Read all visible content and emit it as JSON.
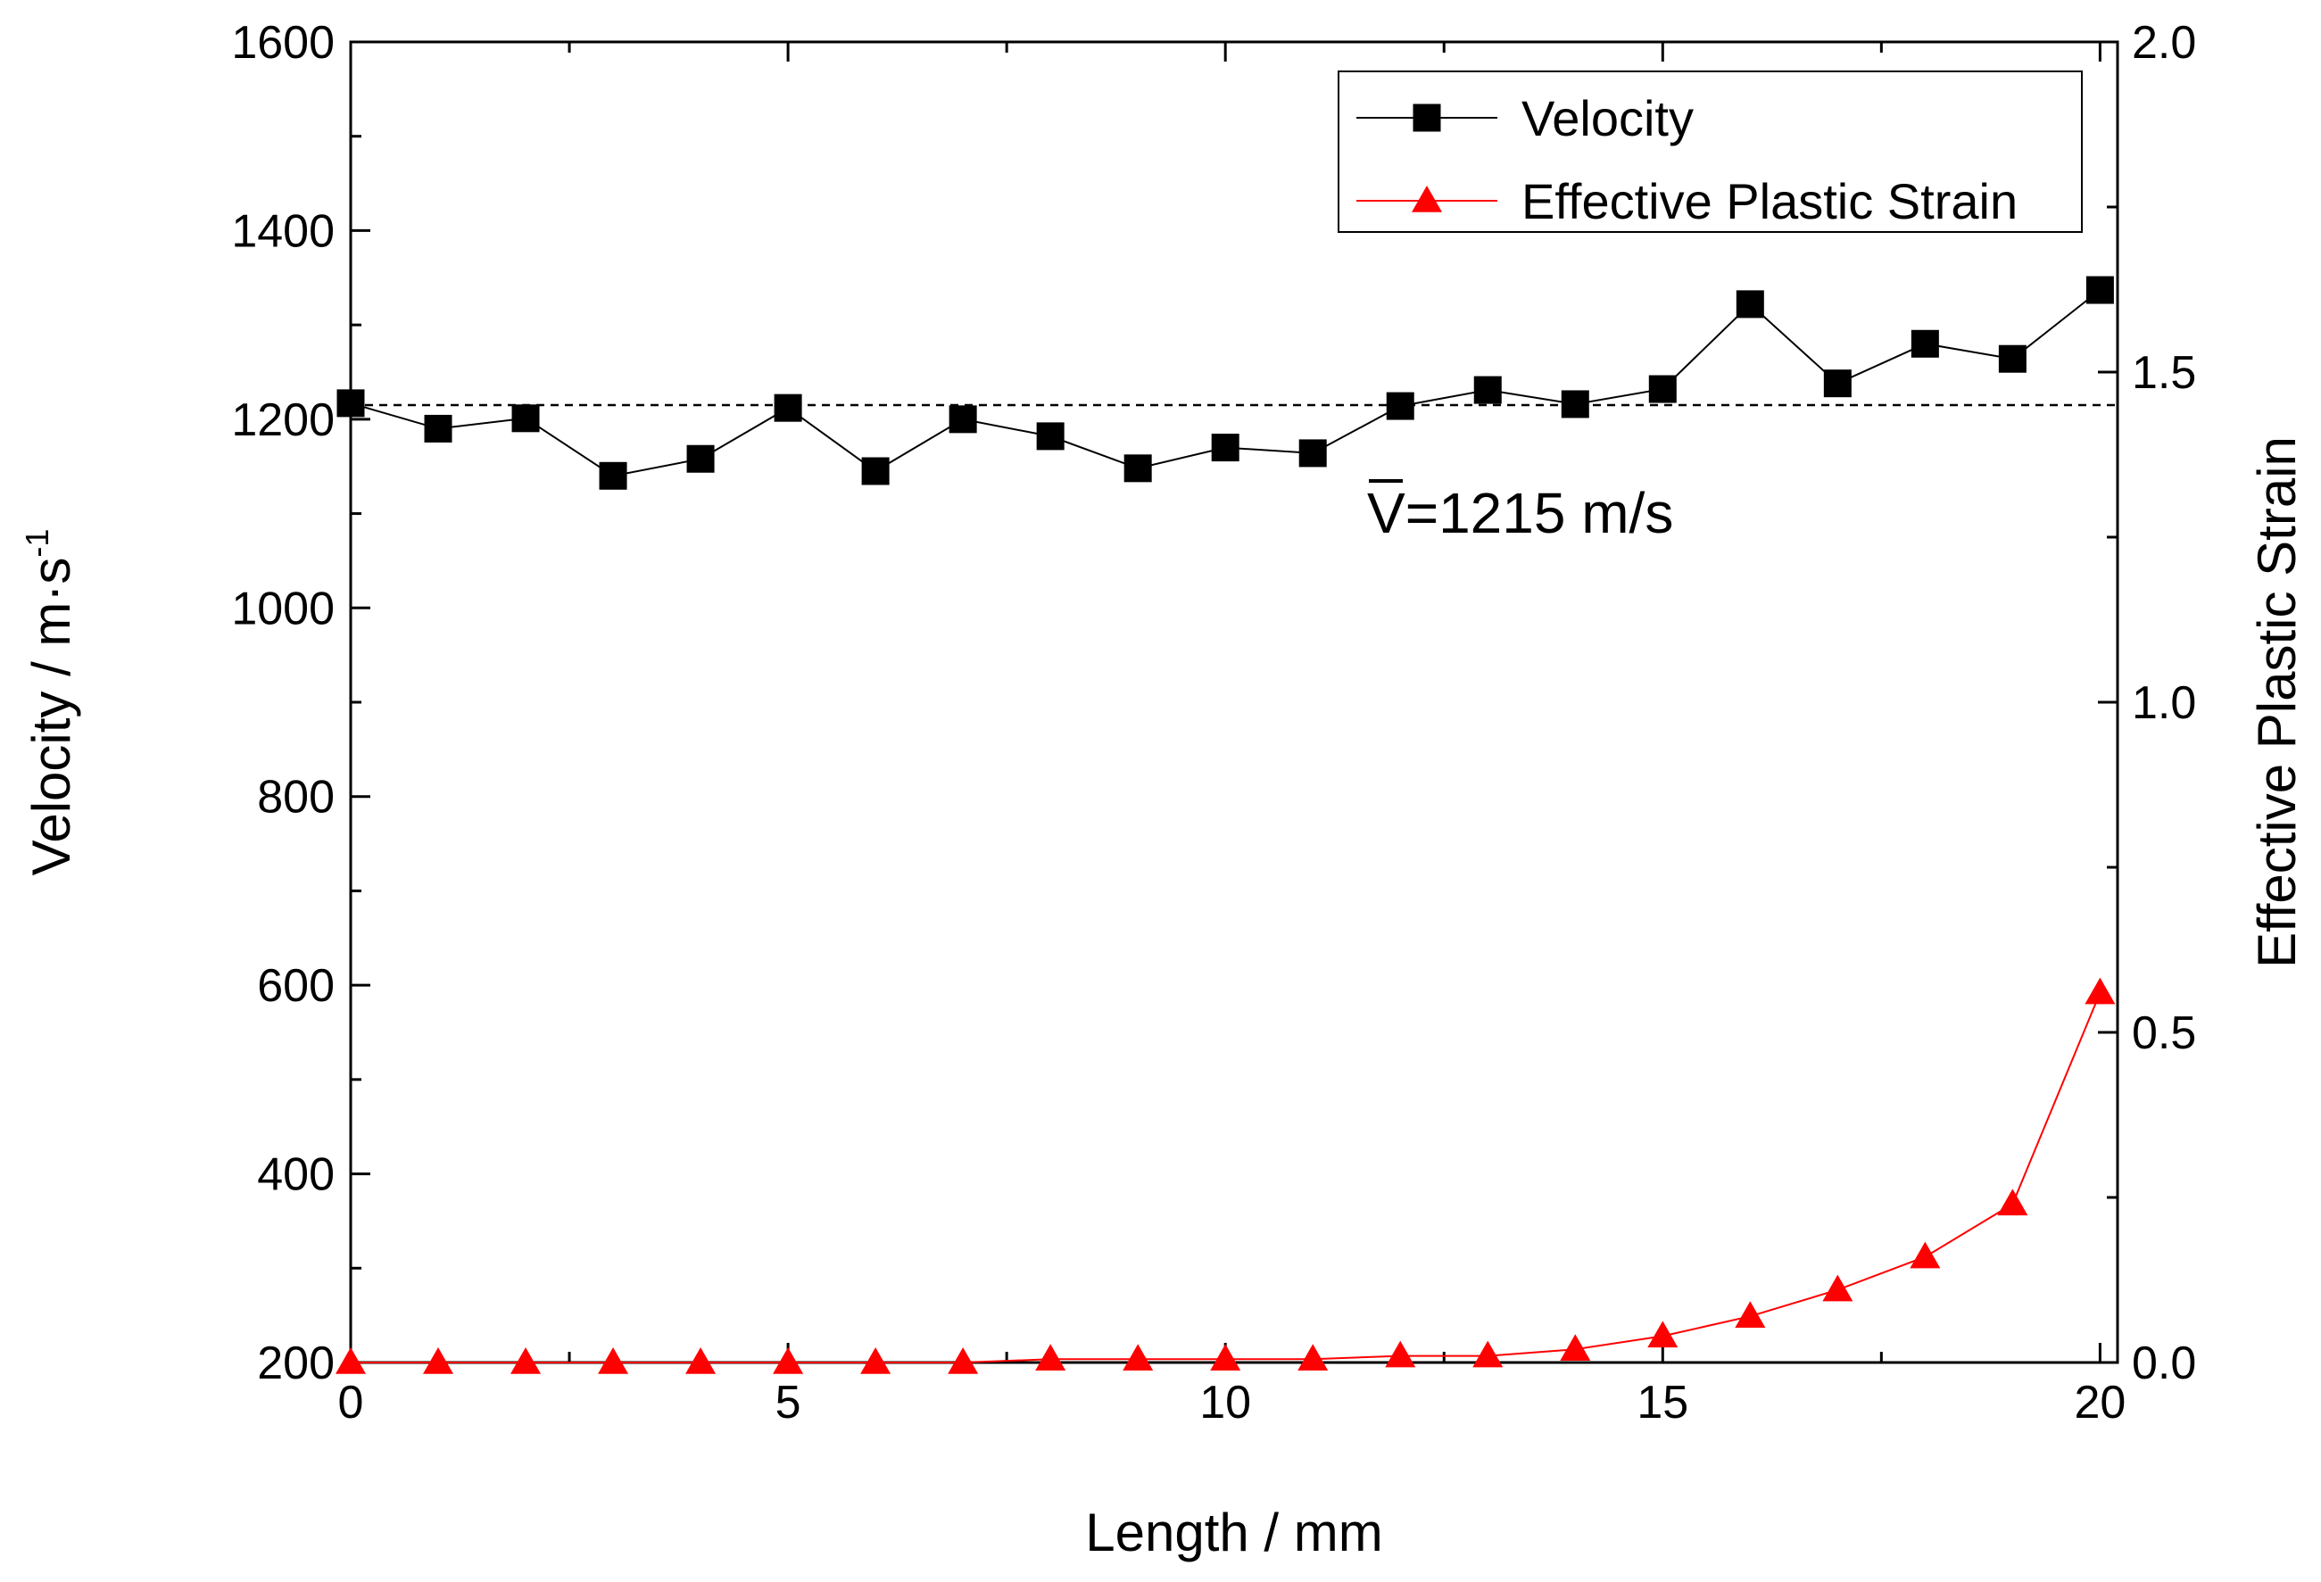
{
  "chart_data": {
    "type": "line",
    "xlabel": "Length / mm",
    "ylabel_left": "Velocity / m·s",
    "ylabel_left_exponent": "-1",
    "ylabel_right": "Effective Plastic Strain",
    "xlim": [
      0,
      20.2
    ],
    "ylim_left": [
      200,
      1600
    ],
    "ylim_right": [
      0.0,
      2.0
    ],
    "x_ticks": [
      "0",
      "5",
      "10",
      "15",
      "20"
    ],
    "y_left_ticks": [
      "200",
      "400",
      "600",
      "800",
      "1000",
      "1200",
      "1400",
      "1600"
    ],
    "y_right_ticks": [
      "0.0",
      "0.5",
      "1.0",
      "1.5",
      "2.0"
    ],
    "grid": false,
    "legend_position": "top-right",
    "series": [
      {
        "name": "Velocity",
        "axis": "left",
        "color": "#000000",
        "marker": "square",
        "x": [
          0,
          1,
          2,
          3,
          4,
          5,
          6,
          7,
          8,
          9,
          10,
          11,
          12,
          13,
          14,
          15,
          16,
          17,
          18,
          19,
          20
        ],
        "values": [
          1217,
          1190,
          1201,
          1140,
          1158,
          1212,
          1145,
          1200,
          1182,
          1148,
          1170,
          1164,
          1214,
          1231,
          1216,
          1232,
          1322,
          1238,
          1280,
          1264,
          1337
        ]
      },
      {
        "name": "Effective Plastic Strain",
        "axis": "right",
        "color": "#ff0000",
        "marker": "triangle",
        "x": [
          0,
          1,
          2,
          3,
          4,
          5,
          6,
          7,
          8,
          9,
          10,
          11,
          12,
          13,
          14,
          15,
          16,
          17,
          18,
          19,
          20
        ],
        "values": [
          0.0,
          0.0,
          0.0,
          0.0,
          0.0,
          0.0,
          0.0,
          0.0,
          0.005,
          0.005,
          0.005,
          0.005,
          0.01,
          0.01,
          0.02,
          0.04,
          0.07,
          0.11,
          0.16,
          0.24,
          0.56
        ]
      }
    ],
    "reference_line": {
      "axis": "left",
      "value": 1215,
      "style": "dashed",
      "annotation": "V=1215 m/s",
      "annotation_symbol": "V",
      "annotation_suffix": "=1215 m/s"
    }
  }
}
